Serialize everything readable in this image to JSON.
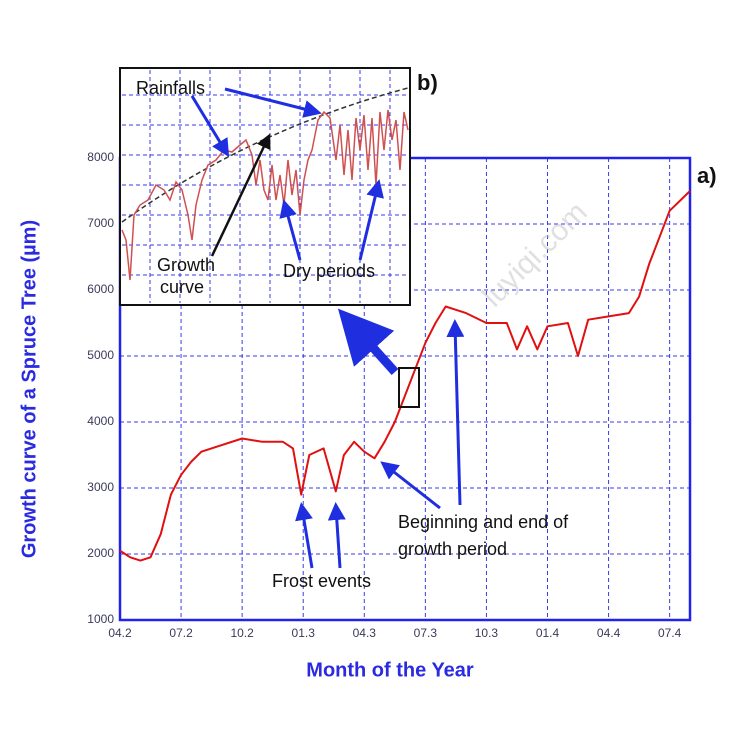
{
  "chart_data": {
    "type": "line",
    "ylabel": "Growth curve of a Spruce Tree (µm)",
    "xlabel": "Month of the Year",
    "panel_label": "a)",
    "x": [
      0,
      0.5,
      1,
      1.5,
      2,
      2.5,
      3,
      3.5,
      4,
      5,
      6,
      7,
      8,
      8.5,
      8.9,
      9.3,
      10,
      10.6,
      11,
      11.5,
      12,
      12.5,
      13,
      13.5,
      14,
      14.5,
      15,
      15.5,
      16,
      16.5,
      17,
      18,
      19,
      19.5,
      20,
      20.5,
      21,
      22,
      22.5,
      23,
      24,
      25,
      25.5,
      26,
      26.5,
      27,
      28
    ],
    "values": [
      2050,
      1950,
      1900,
      1950,
      2300,
      2900,
      3200,
      3400,
      3550,
      3650,
      3750,
      3700,
      3700,
      3600,
      2900,
      3500,
      3600,
      2950,
      3500,
      3700,
      3550,
      3450,
      3700,
      4000,
      4400,
      4800,
      5200,
      5500,
      5750,
      5700,
      5650,
      5500,
      5500,
      5100,
      5450,
      5100,
      5450,
      5500,
      5000,
      5550,
      5600,
      5650,
      5900,
      6400,
      6800,
      7200,
      7500
    ],
    "color": "#e01010",
    "xlim": [
      0,
      28
    ],
    "xticks": [
      {
        "value": 0,
        "label": "04.2"
      },
      {
        "value": 3,
        "label": "07.2"
      },
      {
        "value": 6,
        "label": "10.2"
      },
      {
        "value": 9,
        "label": "01.3"
      },
      {
        "value": 12,
        "label": "04.3"
      },
      {
        "value": 15,
        "label": "07.3"
      },
      {
        "value": 18,
        "label": "10.3"
      },
      {
        "value": 21,
        "label": "01.4"
      },
      {
        "value": 24,
        "label": "04.4"
      },
      {
        "value": 27,
        "label": "07.4"
      }
    ],
    "ylim": [
      1000,
      8000
    ],
    "yticks": [
      1000,
      2000,
      3000,
      4000,
      5000,
      6000,
      7000,
      8000
    ],
    "grid": true,
    "annotations": [
      {
        "lines": [
          "Beginning and end of",
          "growth period"
        ]
      },
      {
        "lines": [
          "Frost events"
        ]
      }
    ]
  },
  "inset": {
    "label": "b)",
    "annotations": [
      {
        "lines": [
          "Rainfalls"
        ]
      },
      {
        "lines": [
          "Growth",
          "curve"
        ]
      },
      {
        "lines": [
          "Dry periods"
        ]
      }
    ]
  },
  "watermark": "luyiqi.com"
}
